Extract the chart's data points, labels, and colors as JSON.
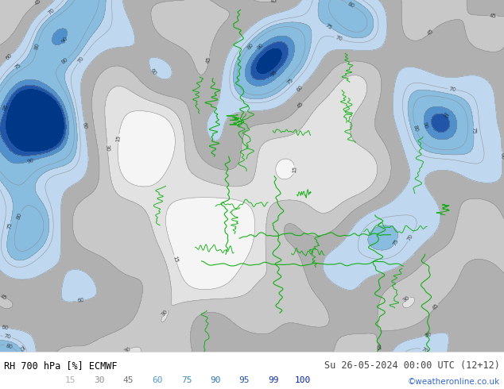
{
  "title_left": "RH 700 hPa [%] ECMWF",
  "title_right": "Su 26-05-2024 00:00 UTC (12+12)",
  "credit": "©weatheronline.co.uk",
  "legend_values": [
    "15",
    "30",
    "45",
    "60",
    "75",
    "90",
    "95",
    "99",
    "100"
  ],
  "legend_colors_fill": [
    "#d4d4d4",
    "#b8b8b8",
    "#9c9c9c",
    "#a8c8e8",
    "#7ab0d8",
    "#4488cc",
    "#2255aa",
    "#1133880",
    "#001166"
  ],
  "legend_label_colors": [
    "#b0b0b0",
    "#909090",
    "#787878",
    "#5599cc",
    "#4488bb",
    "#3377bb",
    "#2255aa",
    "#1133aa",
    "#0022aa"
  ],
  "background_color": "#ffffff",
  "text_color_left": "#000000",
  "text_color_right": "#444444",
  "credit_color": "#3366cc",
  "figsize": [
    6.34,
    4.9
  ],
  "dpi": 100,
  "map_colors": {
    "very_dry_light": "#f0f0f0",
    "very_dry": "#e0e0e0",
    "dry": "#c8c8c8",
    "medium_dry": "#b0b0b0",
    "light_moist": "#c8ddf0",
    "moist": "#90c0e8",
    "very_moist": "#5090d0",
    "wet": "#2060b8",
    "very_wet": "#0040a0",
    "saturated": "#002888",
    "green_bg": "#c8f0a8",
    "border_color": "#00aa00"
  },
  "levels": [
    0,
    15,
    30,
    45,
    60,
    75,
    90,
    95,
    99,
    101
  ],
  "fill_colors": [
    "#f5f5f5",
    "#e2e2e2",
    "#c8c8c8",
    "#b0b0b0",
    "#c0d8ef",
    "#88bde0",
    "#5090cc",
    "#2055a8",
    "#003888"
  ]
}
